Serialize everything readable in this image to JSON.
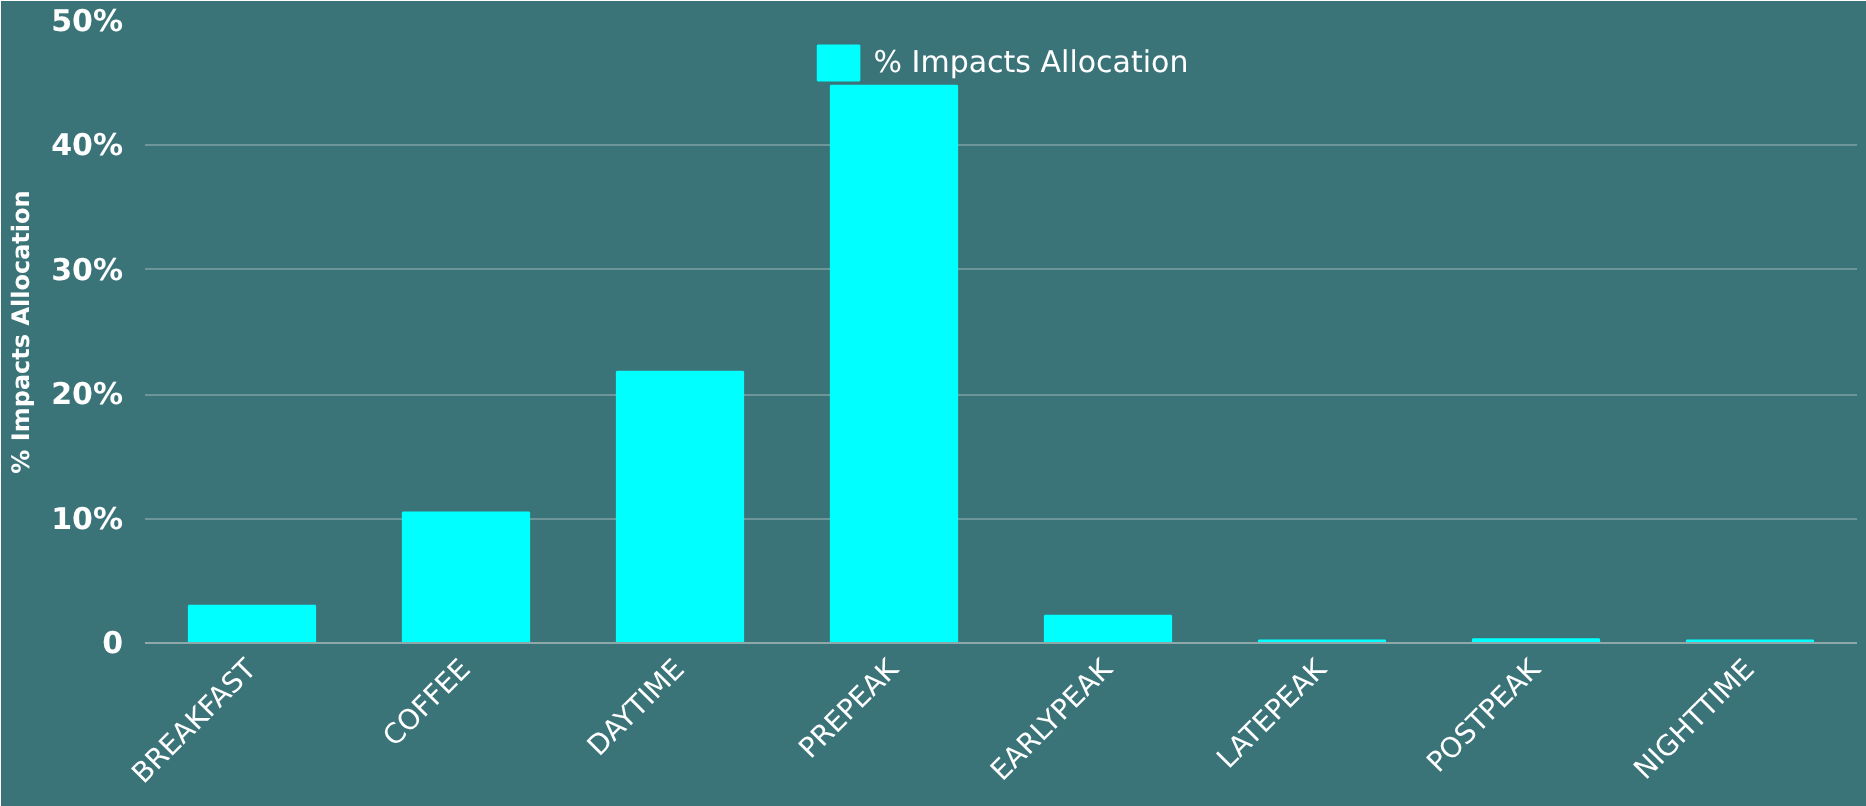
{
  "chart_data": {
    "type": "bar",
    "ylabel": "% Impacts Allocation",
    "categories": [
      "BREAKFAST",
      "COFFEE",
      "DAYTIME",
      "PREPEAK",
      "EARLYPEAK",
      "LATEPEAK",
      "POSTPEAK",
      "NIGHTTIME"
    ],
    "series": [
      {
        "name": "% Impacts Allocation",
        "color": "#00ffff",
        "values": [
          3.0,
          10.5,
          21.8,
          44.8,
          2.2,
          0.2,
          0.3,
          0.2
        ]
      }
    ],
    "ylim": [
      0,
      50
    ],
    "yticks": [
      {
        "value": 0,
        "label": "0"
      },
      {
        "value": 10,
        "label": "10%"
      },
      {
        "value": 20,
        "label": "20%"
      },
      {
        "value": 30,
        "label": "30%"
      },
      {
        "value": 40,
        "label": "40%"
      },
      {
        "value": 50,
        "label": "50%"
      }
    ],
    "grid": "y",
    "legend": "top"
  }
}
